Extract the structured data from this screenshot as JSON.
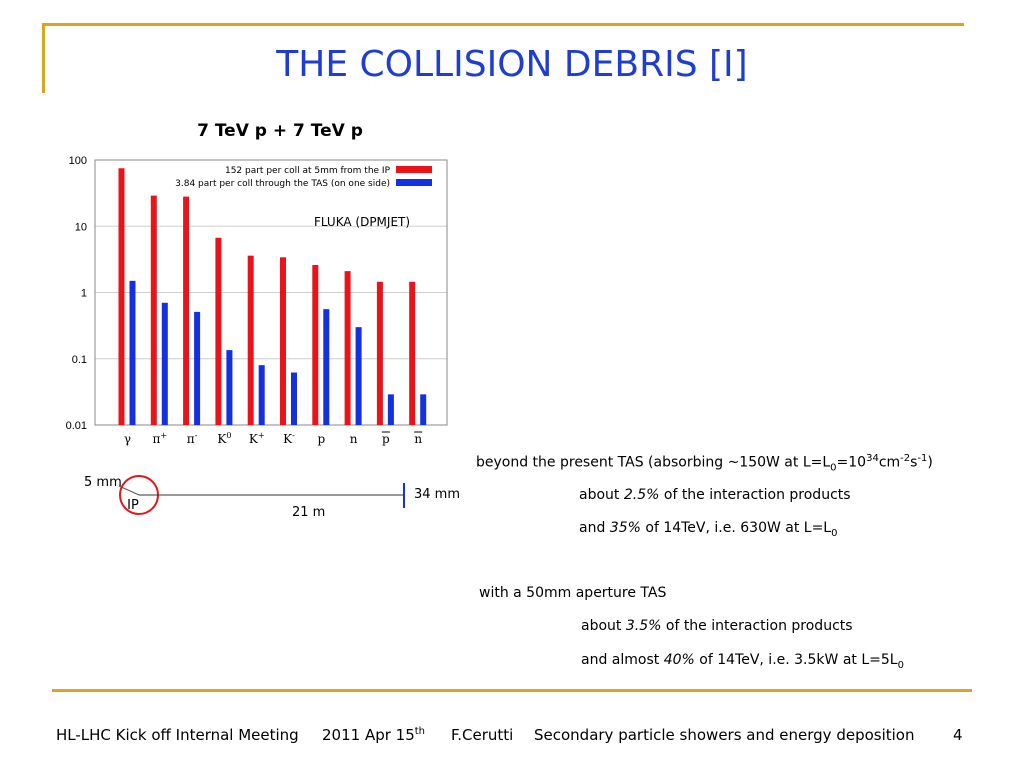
{
  "slide": {
    "title": "THE COLLISION DEBRIS [I]",
    "accent_color": "#DAA520",
    "title_color": "#1F3ED0"
  },
  "chart_data": {
    "type": "bar",
    "title": "7 TeV p + 7 TeV p",
    "annotation": "FLUKA (DPMJET)",
    "y_scale": "log",
    "ylim": [
      0.01,
      100
    ],
    "y_ticks": [
      "100",
      "10",
      "1",
      "0.1",
      "0.01"
    ],
    "categories": [
      "γ",
      "π+",
      "π-",
      "K0",
      "K+",
      "K-",
      "p",
      "n",
      "p̄",
      "n̄"
    ],
    "category_labels": [
      {
        "base": "γ",
        "sup": "",
        "bar": false
      },
      {
        "base": "π",
        "sup": "+",
        "bar": false
      },
      {
        "base": "π",
        "sup": "-",
        "bar": false
      },
      {
        "base": "K",
        "sup": "0",
        "bar": false
      },
      {
        "base": "K",
        "sup": "+",
        "bar": false
      },
      {
        "base": "K",
        "sup": "-",
        "bar": false
      },
      {
        "base": "p",
        "sup": "",
        "bar": false
      },
      {
        "base": "n",
        "sup": "",
        "bar": false
      },
      {
        "base": "p",
        "sup": "",
        "bar": true
      },
      {
        "base": "n",
        "sup": "",
        "bar": true
      }
    ],
    "legend_placement": "top-right",
    "series": [
      {
        "name": "152 part per coll at 5mm from the IP",
        "color": "#E8141A",
        "values": [
          75,
          29,
          28,
          6.7,
          3.6,
          3.4,
          2.6,
          2.1,
          1.45,
          1.45
        ]
      },
      {
        "name": "3.84 part per coll through the TAS (on one side)",
        "color": "#1530E0",
        "values": [
          1.5,
          0.7,
          0.51,
          0.135,
          0.08,
          0.062,
          0.56,
          0.3,
          0.029,
          0.029
        ]
      }
    ]
  },
  "geometry_diagram": {
    "ip_label": "IP",
    "radius_label": "5 mm",
    "distance_label": "21 m",
    "aperture_label": "34 mm"
  },
  "notes": {
    "line1": {
      "pre": "beyond the present TAS (absorbing ~150W at L=L",
      "sub": "0",
      "mid": "=10",
      "sup1": "34",
      "mid2": "cm",
      "sup2": "-2",
      "mid3": "s",
      "sup3": "-1",
      "post": ")"
    },
    "line2": {
      "pre": "about ",
      "em": "2.5%",
      "post": " of the interaction products"
    },
    "line3": {
      "pre": "and ",
      "em": "35%",
      "post": " of 14TeV, i.e. 630W at L=L",
      "sub": "0"
    },
    "line4": {
      "text": "with a 50mm aperture TAS"
    },
    "line5": {
      "pre": "about ",
      "em": "3.5%",
      "post": " of the interaction products"
    },
    "line6": {
      "pre": "and almost ",
      "em": "40%",
      "post": " of 14TeV, i.e. 3.5kW at L=5L",
      "sub": "0"
    }
  },
  "footer": {
    "meeting": "HL-LHC Kick off Internal Meeting",
    "date": "2011 Apr 15",
    "date_sup": "th",
    "author": "F.Cerutti",
    "topic": "Secondary particle showers and energy deposition",
    "page": "4"
  }
}
